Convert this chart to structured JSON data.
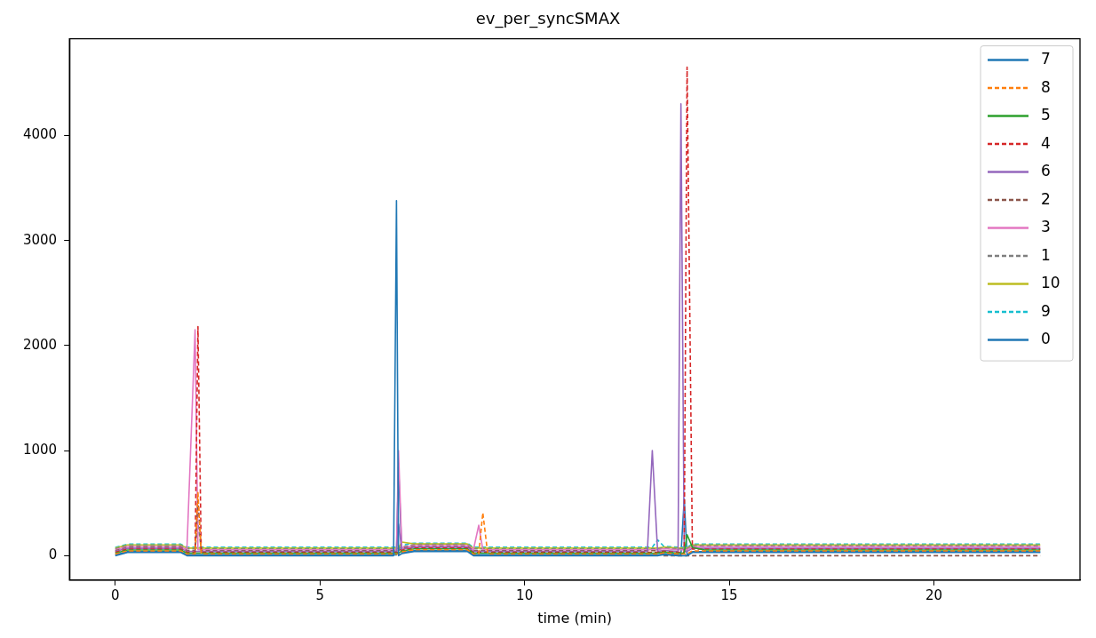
{
  "chart_data": {
    "type": "line",
    "title": "ev_per_syncSMAX",
    "xlabel": "time (min)",
    "x": [
      0,
      0.3,
      1.6,
      1.75,
      1.95,
      2.02,
      2.1,
      5,
      6.8,
      6.87,
      6.92,
      7.0,
      7.3,
      8.6,
      8.75,
      8.88,
      8.98,
      9.1,
      13.0,
      13.12,
      13.25,
      13.4,
      13.75,
      13.82,
      13.9,
      13.97,
      14.1,
      14.4,
      18,
      22.6
    ],
    "xlim": [
      -1.12,
      23.57
    ],
    "xticks": [
      0,
      5,
      10,
      15,
      20
    ],
    "ylim": [
      -232,
      4920
    ],
    "yticks": [
      0,
      1000,
      2000,
      3000,
      4000
    ],
    "grid": false,
    "legend": "top right",
    "marker": "none",
    "series": [
      {
        "name": "7",
        "color": "#1f77b4",
        "line_style": "solid",
        "values": [
          0,
          30,
          30,
          0,
          0,
          0,
          0,
          0,
          0,
          3380,
          0,
          20,
          40,
          40,
          0,
          0,
          0,
          0,
          0,
          0,
          0,
          10,
          0,
          0,
          0,
          0,
          30,
          30,
          30,
          30
        ]
      },
      {
        "name": "8",
        "color": "#ff7f0e",
        "line_style": "dashed",
        "values": [
          16,
          46,
          46,
          16,
          16,
          600,
          16,
          16,
          16,
          16,
          16,
          36,
          56,
          56,
          16,
          16,
          410,
          16,
          16,
          16,
          16,
          26,
          16,
          16,
          16,
          16,
          46,
          46,
          46,
          46
        ]
      },
      {
        "name": "5",
        "color": "#2ca02c",
        "line_style": "solid",
        "values": [
          24,
          54,
          54,
          24,
          24,
          24,
          24,
          24,
          24,
          24,
          24,
          44,
          64,
          64,
          24,
          24,
          24,
          24,
          24,
          24,
          24,
          34,
          24,
          24,
          24,
          200,
          80,
          54,
          54,
          54
        ]
      },
      {
        "name": "4",
        "color": "#d62728",
        "line_style": "dashed",
        "values": [
          32,
          62,
          62,
          32,
          32,
          2180,
          32,
          32,
          32,
          32,
          32,
          52,
          72,
          72,
          32,
          32,
          32,
          32,
          32,
          32,
          32,
          42,
          32,
          32,
          32,
          4650,
          62,
          62,
          62,
          62
        ]
      },
      {
        "name": "6",
        "color": "#9467bd",
        "line_style": "solid",
        "values": [
          40,
          70,
          70,
          40,
          40,
          40,
          40,
          40,
          40,
          40,
          300,
          60,
          80,
          80,
          40,
          40,
          40,
          40,
          40,
          1000,
          40,
          50,
          40,
          4300,
          40,
          40,
          70,
          70,
          70,
          70
        ]
      },
      {
        "name": "2",
        "color": "#8c564b",
        "line_style": "dashed",
        "values": [
          48,
          78,
          78,
          48,
          48,
          520,
          48,
          48,
          48,
          48,
          48,
          68,
          88,
          88,
          48,
          48,
          48,
          48,
          48,
          48,
          48,
          0,
          0,
          0,
          0,
          0,
          0,
          0,
          0,
          0
        ]
      },
      {
        "name": "3",
        "color": "#e377c2",
        "line_style": "solid",
        "values": [
          56,
          86,
          86,
          56,
          2150,
          56,
          56,
          56,
          56,
          56,
          1000,
          76,
          96,
          96,
          56,
          290,
          56,
          56,
          56,
          56,
          56,
          66,
          56,
          56,
          56,
          56,
          86,
          86,
          86,
          86
        ]
      },
      {
        "name": "1",
        "color": "#7f7f7f",
        "line_style": "dashed",
        "values": [
          64,
          94,
          94,
          64,
          64,
          300,
          64,
          64,
          64,
          64,
          64,
          84,
          104,
          104,
          64,
          64,
          64,
          64,
          64,
          64,
          64,
          74,
          64,
          64,
          64,
          64,
          94,
          94,
          94,
          94
        ]
      },
      {
        "name": "10",
        "color": "#bcbd22",
        "line_style": "solid",
        "values": [
          72,
          102,
          102,
          72,
          72,
          72,
          72,
          72,
          72,
          72,
          72,
          130,
          112,
          112,
          72,
          72,
          72,
          72,
          72,
          72,
          72,
          82,
          72,
          72,
          72,
          72,
          102,
          102,
          102,
          102
        ]
      },
      {
        "name": "9",
        "color": "#17becf",
        "line_style": "dashed",
        "values": [
          80,
          110,
          110,
          80,
          80,
          80,
          80,
          80,
          80,
          80,
          80,
          100,
          120,
          120,
          80,
          80,
          80,
          80,
          80,
          80,
          150,
          90,
          80,
          80,
          80,
          80,
          110,
          110,
          110,
          110
        ]
      },
      {
        "name": "0",
        "color": "#1f77b4",
        "line_style": "solid",
        "values": [
          8,
          38,
          38,
          8,
          8,
          8,
          8,
          8,
          8,
          8,
          850,
          28,
          48,
          48,
          8,
          8,
          8,
          8,
          8,
          8,
          8,
          18,
          8,
          8,
          540,
          8,
          38,
          38,
          38,
          38
        ]
      }
    ]
  }
}
